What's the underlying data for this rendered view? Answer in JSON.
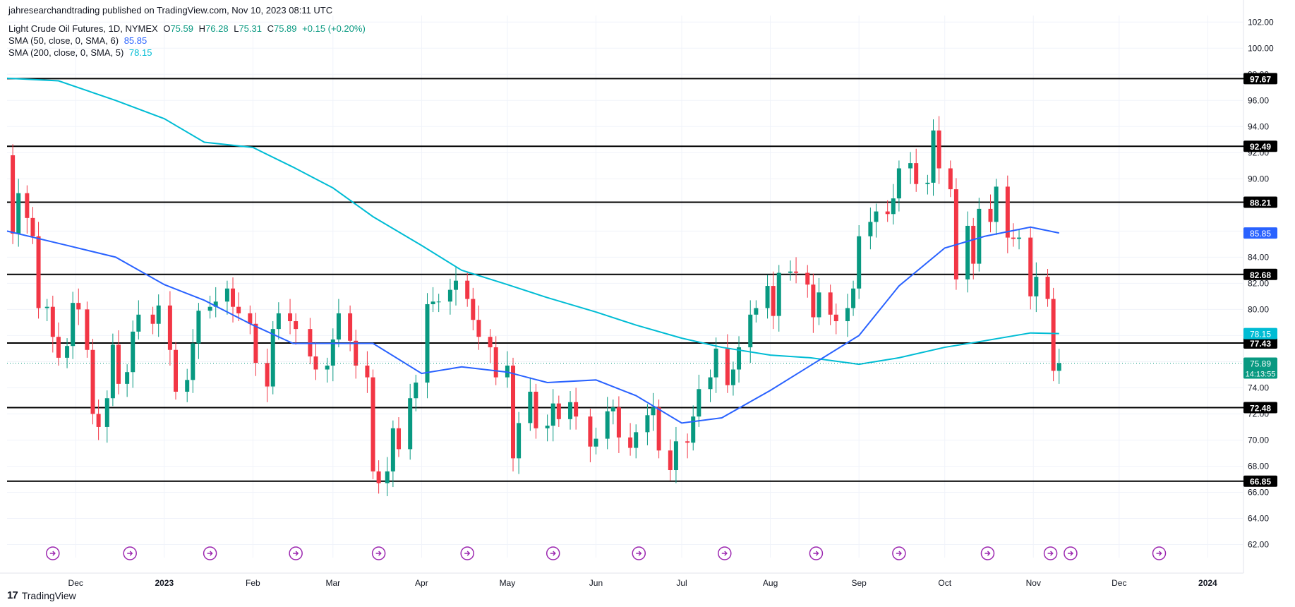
{
  "header": {
    "published": "jahresearchandtrading published on TradingView.com, Nov 10, 2023 08:11 UTC",
    "symbol": "Light Crude Oil Futures, 1D, NYMEX",
    "ohlc": {
      "o_label": "O",
      "o": "75.59",
      "h_label": "H",
      "h": "76.28",
      "l_label": "L",
      "l": "75.31",
      "c_label": "C",
      "c": "75.89",
      "chg": "+0.15 (+0.20%)"
    },
    "sma50_label": "SMA (50, close, 0, SMA, 6)",
    "sma50_value": "85.85",
    "sma200_label": "SMA (200, close, 0, SMA, 5)",
    "sma200_value": "78.15"
  },
  "brand": {
    "logo": "17",
    "name": "TradingView"
  },
  "colors": {
    "up": "#089981",
    "down": "#f23645",
    "sma50": "#2962ff",
    "sma200": "#00bcd4",
    "level": "#000000",
    "event": "#9c27b0"
  },
  "chart_data": {
    "type": "candlestick",
    "y_range": [
      61,
      102.5
    ],
    "y_ticks": [
      62,
      64,
      66,
      68,
      70,
      72,
      74,
      76,
      78,
      80,
      82,
      84,
      86,
      88,
      90,
      92,
      94,
      96,
      98,
      100,
      102
    ],
    "x_ticks": [
      {
        "label": "Dec",
        "date": "2022-12-01"
      },
      {
        "label": "2023",
        "date": "2023-01-01"
      },
      {
        "label": "Feb",
        "date": "2023-02-01"
      },
      {
        "label": "Mar",
        "date": "2023-03-01"
      },
      {
        "label": "Apr",
        "date": "2023-04-01"
      },
      {
        "label": "May",
        "date": "2023-05-01"
      },
      {
        "label": "Jun",
        "date": "2023-06-01"
      },
      {
        "label": "Jul",
        "date": "2023-07-01"
      },
      {
        "label": "Aug",
        "date": "2023-08-01"
      },
      {
        "label": "Sep",
        "date": "2023-09-01"
      },
      {
        "label": "Oct",
        "date": "2023-10-01"
      },
      {
        "label": "Nov",
        "date": "2023-11-01"
      },
      {
        "label": "Dec",
        "date": "2023-12-01"
      },
      {
        "label": "2024",
        "date": "2024-01-01"
      }
    ],
    "x_range": [
      "2022-11-07",
      "2024-01-13"
    ],
    "horizontal_levels": [
      "97.67",
      "92.49",
      "88.21",
      "82.68",
      "77.43",
      "72.48",
      "66.85"
    ],
    "price_tags": [
      {
        "value": "85.85",
        "series": "sma50"
      },
      {
        "value": "78.15",
        "series": "sma200"
      },
      {
        "value": "75.89",
        "series": "last",
        "countdown": "14:13:55"
      }
    ],
    "last_price": 75.89,
    "sma50": [
      [
        "2022-11-07",
        86.0
      ],
      [
        "2022-11-28",
        84.9
      ],
      [
        "2022-12-15",
        84.0
      ],
      [
        "2023-01-01",
        81.9
      ],
      [
        "2023-01-15",
        80.7
      ],
      [
        "2023-02-01",
        78.8
      ],
      [
        "2023-02-15",
        77.4
      ],
      [
        "2023-03-01",
        77.4
      ],
      [
        "2023-03-15",
        77.4
      ],
      [
        "2023-04-01",
        75.1
      ],
      [
        "2023-04-15",
        75.6
      ],
      [
        "2023-05-01",
        75.2
      ],
      [
        "2023-05-15",
        74.4
      ],
      [
        "2023-06-01",
        74.6
      ],
      [
        "2023-06-15",
        73.4
      ],
      [
        "2023-07-01",
        71.3
      ],
      [
        "2023-07-15",
        71.7
      ],
      [
        "2023-08-01",
        73.8
      ],
      [
        "2023-08-15",
        75.7
      ],
      [
        "2023-09-01",
        78.0
      ],
      [
        "2023-09-15",
        81.8
      ],
      [
        "2023-10-01",
        84.7
      ],
      [
        "2023-10-15",
        85.6
      ],
      [
        "2023-10-31",
        86.3
      ],
      [
        "2023-11-10",
        85.85
      ]
    ],
    "sma200": [
      [
        "2022-11-07",
        97.7
      ],
      [
        "2022-11-25",
        97.5
      ],
      [
        "2022-12-15",
        96.0
      ],
      [
        "2023-01-01",
        94.6
      ],
      [
        "2023-01-15",
        92.8
      ],
      [
        "2023-02-01",
        92.4
      ],
      [
        "2023-02-15",
        90.9
      ],
      [
        "2023-03-01",
        89.3
      ],
      [
        "2023-03-15",
        87.1
      ],
      [
        "2023-04-01",
        84.9
      ],
      [
        "2023-04-15",
        83.0
      ],
      [
        "2023-05-01",
        81.9
      ],
      [
        "2023-05-15",
        80.9
      ],
      [
        "2023-06-01",
        79.8
      ],
      [
        "2023-06-15",
        78.8
      ],
      [
        "2023-07-01",
        77.8
      ],
      [
        "2023-07-15",
        77.1
      ],
      [
        "2023-08-01",
        76.5
      ],
      [
        "2023-08-15",
        76.3
      ],
      [
        "2023-09-01",
        75.8
      ],
      [
        "2023-09-15",
        76.3
      ],
      [
        "2023-10-01",
        77.1
      ],
      [
        "2023-10-15",
        77.6
      ],
      [
        "2023-10-31",
        78.2
      ],
      [
        "2023-11-10",
        78.15
      ]
    ],
    "closes": [
      [
        "2022-11-07",
        91.8
      ],
      [
        "2022-11-09",
        85.8
      ],
      [
        "2022-11-11",
        88.9
      ],
      [
        "2022-11-14",
        87.0
      ],
      [
        "2022-11-16",
        85.6
      ],
      [
        "2022-11-18",
        80.1
      ],
      [
        "2022-11-21",
        80.2
      ],
      [
        "2022-11-23",
        77.9
      ],
      [
        "2022-11-25",
        76.3
      ],
      [
        "2022-11-28",
        77.2
      ],
      [
        "2022-11-30",
        80.5
      ],
      [
        "2022-12-02",
        80.0
      ],
      [
        "2022-12-05",
        76.9
      ],
      [
        "2022-12-07",
        72.0
      ],
      [
        "2022-12-09",
        71.0
      ],
      [
        "2022-12-12",
        73.2
      ],
      [
        "2022-12-14",
        77.3
      ],
      [
        "2022-12-16",
        74.3
      ],
      [
        "2022-12-19",
        75.2
      ],
      [
        "2022-12-21",
        78.3
      ],
      [
        "2022-12-23",
        79.6
      ],
      [
        "2022-12-28",
        78.9
      ],
      [
        "2022-12-30",
        80.3
      ],
      [
        "2023-01-03",
        76.9
      ],
      [
        "2023-01-05",
        73.7
      ],
      [
        "2023-01-09",
        74.6
      ],
      [
        "2023-01-11",
        77.4
      ],
      [
        "2023-01-13",
        79.9
      ],
      [
        "2023-01-17",
        80.2
      ],
      [
        "2023-01-19",
        80.6
      ],
      [
        "2023-01-23",
        81.6
      ],
      [
        "2023-01-25",
        80.2
      ],
      [
        "2023-01-27",
        79.7
      ],
      [
        "2023-01-31",
        78.9
      ],
      [
        "2023-02-02",
        75.9
      ],
      [
        "2023-02-06",
        74.1
      ],
      [
        "2023-02-08",
        78.5
      ],
      [
        "2023-02-10",
        79.7
      ],
      [
        "2023-02-14",
        79.1
      ],
      [
        "2023-02-16",
        78.5
      ],
      [
        "2023-02-21",
        76.4
      ],
      [
        "2023-02-23",
        75.4
      ],
      [
        "2023-02-27",
        75.7
      ],
      [
        "2023-03-01",
        77.7
      ],
      [
        "2023-03-03",
        79.7
      ],
      [
        "2023-03-07",
        77.6
      ],
      [
        "2023-03-09",
        75.7
      ],
      [
        "2023-03-13",
        74.8
      ],
      [
        "2023-03-15",
        67.6
      ],
      [
        "2023-03-17",
        66.7
      ],
      [
        "2023-03-20",
        67.6
      ],
      [
        "2023-03-22",
        70.9
      ],
      [
        "2023-03-24",
        69.3
      ],
      [
        "2023-03-28",
        73.2
      ],
      [
        "2023-03-30",
        74.4
      ],
      [
        "2023-04-03",
        80.4
      ],
      [
        "2023-04-05",
        80.6
      ],
      [
        "2023-04-07",
        80.6
      ],
      [
        "2023-04-11",
        81.5
      ],
      [
        "2023-04-13",
        82.2
      ],
      [
        "2023-04-17",
        80.8
      ],
      [
        "2023-04-19",
        79.2
      ],
      [
        "2023-04-21",
        77.9
      ],
      [
        "2023-04-25",
        77.1
      ],
      [
        "2023-04-27",
        74.8
      ],
      [
        "2023-05-01",
        75.7
      ],
      [
        "2023-05-03",
        68.6
      ],
      [
        "2023-05-05",
        71.3
      ],
      [
        "2023-05-09",
        73.7
      ],
      [
        "2023-05-11",
        70.9
      ],
      [
        "2023-05-15",
        71.1
      ],
      [
        "2023-05-17",
        72.8
      ],
      [
        "2023-05-19",
        71.6
      ],
      [
        "2023-05-23",
        72.9
      ],
      [
        "2023-05-25",
        71.8
      ],
      [
        "2023-05-30",
        69.5
      ],
      [
        "2023-06-01",
        70.1
      ],
      [
        "2023-06-05",
        72.2
      ],
      [
        "2023-06-07",
        72.5
      ],
      [
        "2023-06-09",
        70.2
      ],
      [
        "2023-06-13",
        69.4
      ],
      [
        "2023-06-15",
        70.6
      ],
      [
        "2023-06-19",
        71.9
      ],
      [
        "2023-06-21",
        72.5
      ],
      [
        "2023-06-23",
        69.2
      ],
      [
        "2023-06-27",
        67.7
      ],
      [
        "2023-06-29",
        69.9
      ],
      [
        "2023-07-03",
        69.8
      ],
      [
        "2023-07-05",
        71.8
      ],
      [
        "2023-07-07",
        73.9
      ],
      [
        "2023-07-11",
        74.8
      ],
      [
        "2023-07-13",
        77.0
      ],
      [
        "2023-07-17",
        74.2
      ],
      [
        "2023-07-19",
        75.4
      ],
      [
        "2023-07-21",
        77.1
      ],
      [
        "2023-07-25",
        79.6
      ],
      [
        "2023-07-27",
        80.1
      ],
      [
        "2023-07-31",
        81.8
      ],
      [
        "2023-08-02",
        79.5
      ],
      [
        "2023-08-04",
        82.8
      ],
      [
        "2023-08-08",
        82.9
      ],
      [
        "2023-08-10",
        82.8
      ],
      [
        "2023-08-14",
        81.9
      ],
      [
        "2023-08-16",
        79.4
      ],
      [
        "2023-08-18",
        81.3
      ],
      [
        "2023-08-22",
        79.6
      ],
      [
        "2023-08-24",
        79.1
      ],
      [
        "2023-08-28",
        80.1
      ],
      [
        "2023-08-30",
        81.6
      ],
      [
        "2023-09-01",
        85.6
      ],
      [
        "2023-09-05",
        86.7
      ],
      [
        "2023-09-07",
        87.5
      ],
      [
        "2023-09-11",
        87.3
      ],
      [
        "2023-09-13",
        88.5
      ],
      [
        "2023-09-15",
        90.8
      ],
      [
        "2023-09-19",
        91.2
      ],
      [
        "2023-09-21",
        89.6
      ],
      [
        "2023-09-25",
        89.7
      ],
      [
        "2023-09-27",
        93.7
      ],
      [
        "2023-09-29",
        90.8
      ],
      [
        "2023-10-03",
        89.2
      ],
      [
        "2023-10-05",
        82.3
      ],
      [
        "2023-10-09",
        86.4
      ],
      [
        "2023-10-11",
        83.5
      ],
      [
        "2023-10-13",
        87.7
      ],
      [
        "2023-10-17",
        86.7
      ],
      [
        "2023-10-19",
        89.4
      ],
      [
        "2023-10-23",
        85.5
      ],
      [
        "2023-10-25",
        85.4
      ],
      [
        "2023-10-27",
        85.5
      ],
      [
        "2023-10-31",
        81.0
      ],
      [
        "2023-11-02",
        82.5
      ],
      [
        "2023-11-06",
        80.8
      ],
      [
        "2023-11-08",
        75.3
      ],
      [
        "2023-11-10",
        75.89
      ]
    ],
    "events": [
      "2022-11-23",
      "2022-12-20",
      "2023-01-17",
      "2023-02-16",
      "2023-03-17",
      "2023-04-17",
      "2023-05-17",
      "2023-06-16",
      "2023-07-16",
      "2023-08-17",
      "2023-09-15",
      "2023-10-16",
      "2023-11-07",
      "2023-11-14",
      "2023-12-15"
    ]
  }
}
